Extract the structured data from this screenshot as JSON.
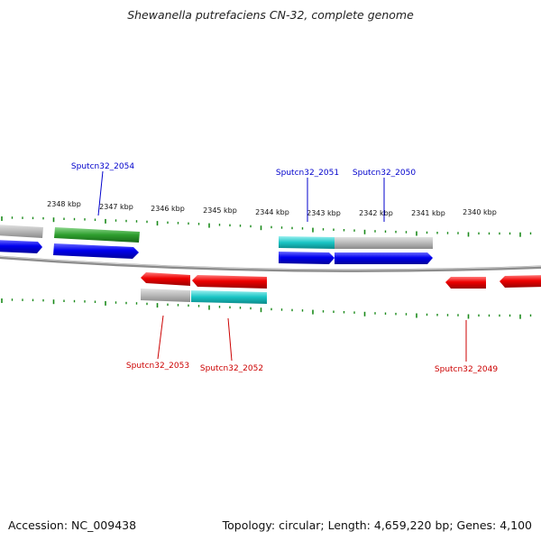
{
  "title": "Shewanella putrefaciens CN-32, complete genome",
  "accession": "Accession: NC_009438",
  "summary": "Topology: circular; Length: 4,659,220 bp; Genes: 4,100",
  "colors": {
    "forward_gene": "#0000ee",
    "reverse_gene": "#ee0000",
    "cds_gray": "#b8b8b8",
    "cds_green": "#2e9e2e",
    "cds_cyan": "#19c4c4",
    "tick": "#1a8a1a",
    "backbone": "#888888",
    "fwd_label": "#0000cc",
    "rev_label": "#cc0000"
  },
  "scale_labels": [
    "2348 kbp",
    "2347 kbp",
    "2346 kbp",
    "2345 kbp",
    "2344 kbp",
    "2343 kbp",
    "2342 kbp",
    "2341 kbp",
    "2340 kbp"
  ],
  "forward_gene_labels": [
    "Sputcn32_2054",
    "Sputcn32_2051",
    "Sputcn32_2050"
  ],
  "reverse_gene_labels": [
    "Sputcn32_2053",
    "Sputcn32_2052",
    "Sputcn32_2049"
  ]
}
